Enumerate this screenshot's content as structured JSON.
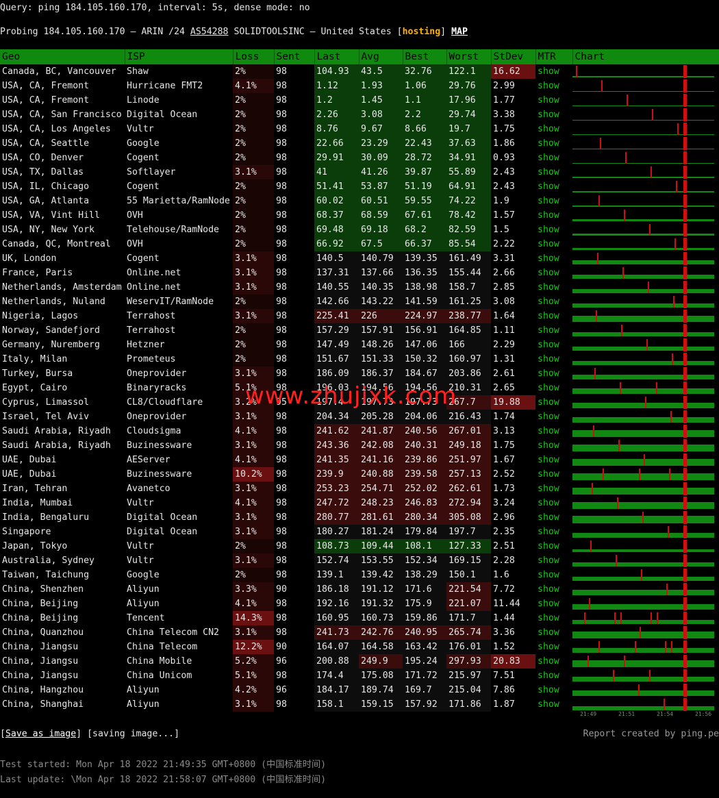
{
  "query": {
    "label": "Query:",
    "command": "ping 184.105.160.170",
    "interval": "interval: 5s",
    "dense": "dense mode: no"
  },
  "probe": {
    "prefix": "Probing 184.105.160.170 — ARIN /24",
    "asn": "AS54288",
    "org": "SOLIDTOOLSINC — United States",
    "tag": "hosting",
    "map": "MAP"
  },
  "colors": {
    "header_green": "#0f8a0f",
    "good": "#0b3d0b",
    "warn": "#2a1010",
    "bad": "#5a1010",
    "bar": "#118811",
    "spike": "#d01010"
  },
  "columns": [
    "Geo",
    "ISP",
    "Loss",
    "Sent",
    "Last",
    "Avg",
    "Best",
    "Worst",
    "StDev",
    "MTR",
    "Chart"
  ],
  "show_label": "show",
  "rows": [
    {
      "geo": "Canada, BC, Vancouver",
      "isp": "Shaw",
      "loss": "2%",
      "sent": "98",
      "last": "104.93",
      "avg": "43.5",
      "best": "32.76",
      "worst": "122.1",
      "stdev": "16.62"
    },
    {
      "geo": "USA, CA, Fremont",
      "isp": "Hurricane FMT2",
      "loss": "4.1%",
      "sent": "98",
      "last": "1.12",
      "avg": "1.93",
      "best": "1.06",
      "worst": "29.76",
      "stdev": "2.99"
    },
    {
      "geo": "USA, CA, Fremont",
      "isp": "Linode",
      "loss": "2%",
      "sent": "98",
      "last": "1.2",
      "avg": "1.45",
      "best": "1.1",
      "worst": "17.96",
      "stdev": "1.77"
    },
    {
      "geo": "USA, CA, San Francisco",
      "isp": "Digital Ocean",
      "loss": "2%",
      "sent": "98",
      "last": "2.26",
      "avg": "3.08",
      "best": "2.2",
      "worst": "29.74",
      "stdev": "3.38"
    },
    {
      "geo": "USA, CA, Los Angeles",
      "isp": "Vultr",
      "loss": "2%",
      "sent": "98",
      "last": "8.76",
      "avg": "9.67",
      "best": "8.66",
      "worst": "19.7",
      "stdev": "1.75"
    },
    {
      "geo": "USA, CA, Seattle",
      "isp": "Google",
      "loss": "2%",
      "sent": "98",
      "last": "22.66",
      "avg": "23.29",
      "best": "22.43",
      "worst": "37.63",
      "stdev": "1.86"
    },
    {
      "geo": "USA, CO, Denver",
      "isp": "Cogent",
      "loss": "2%",
      "sent": "98",
      "last": "29.91",
      "avg": "30.09",
      "best": "28.72",
      "worst": "34.91",
      "stdev": "0.93"
    },
    {
      "geo": "USA, TX, Dallas",
      "isp": "Softlayer",
      "loss": "3.1%",
      "sent": "98",
      "last": "41",
      "avg": "41.26",
      "best": "39.87",
      "worst": "55.89",
      "stdev": "2.43"
    },
    {
      "geo": "USA, IL, Chicago",
      "isp": "Cogent",
      "loss": "2%",
      "sent": "98",
      "last": "51.41",
      "avg": "53.87",
      "best": "51.19",
      "worst": "64.91",
      "stdev": "2.43"
    },
    {
      "geo": "USA, GA, Atlanta",
      "isp": "55 Marietta/RamNode",
      "loss": "2%",
      "sent": "98",
      "last": "60.02",
      "avg": "60.51",
      "best": "59.55",
      "worst": "74.22",
      "stdev": "1.9"
    },
    {
      "geo": "USA, VA, Vint Hill",
      "isp": "OVH",
      "loss": "2%",
      "sent": "98",
      "last": "68.37",
      "avg": "68.59",
      "best": "67.61",
      "worst": "78.42",
      "stdev": "1.57"
    },
    {
      "geo": "USA, NY, New York",
      "isp": "Telehouse/RamNode",
      "loss": "2%",
      "sent": "98",
      "last": "69.48",
      "avg": "69.18",
      "best": "68.2",
      "worst": "82.59",
      "stdev": "1.5"
    },
    {
      "geo": "Canada, QC, Montreal",
      "isp": "OVH",
      "loss": "2%",
      "sent": "98",
      "last": "66.92",
      "avg": "67.5",
      "best": "66.37",
      "worst": "85.54",
      "stdev": "2.22"
    },
    {
      "geo": "UK, London",
      "isp": "Cogent",
      "loss": "3.1%",
      "sent": "98",
      "last": "140.5",
      "avg": "140.79",
      "best": "139.35",
      "worst": "161.49",
      "stdev": "3.31"
    },
    {
      "geo": "France, Paris",
      "isp": "Online.net",
      "loss": "3.1%",
      "sent": "98",
      "last": "137.31",
      "avg": "137.66",
      "best": "136.35",
      "worst": "155.44",
      "stdev": "2.66"
    },
    {
      "geo": "Netherlands, Amsterdam",
      "isp": "Online.net",
      "loss": "3.1%",
      "sent": "98",
      "last": "140.55",
      "avg": "140.35",
      "best": "138.98",
      "worst": "158.7",
      "stdev": "2.85"
    },
    {
      "geo": "Netherlands, Nuland",
      "isp": "WeservIT/RamNode",
      "loss": "2%",
      "sent": "98",
      "last": "142.66",
      "avg": "143.22",
      "best": "141.59",
      "worst": "161.25",
      "stdev": "3.08"
    },
    {
      "geo": "Nigeria, Lagos",
      "isp": "Terrahost",
      "loss": "3.1%",
      "sent": "98",
      "last": "225.41",
      "avg": "226",
      "best": "224.97",
      "worst": "238.77",
      "stdev": "1.64"
    },
    {
      "geo": "Norway, Sandefjord",
      "isp": "Terrahost",
      "loss": "2%",
      "sent": "98",
      "last": "157.29",
      "avg": "157.91",
      "best": "156.91",
      "worst": "164.85",
      "stdev": "1.11"
    },
    {
      "geo": "Germany, Nuremberg",
      "isp": "Hetzner",
      "loss": "2%",
      "sent": "98",
      "last": "147.49",
      "avg": "148.26",
      "best": "147.06",
      "worst": "166",
      "stdev": "2.29"
    },
    {
      "geo": "Italy, Milan",
      "isp": "Prometeus",
      "loss": "2%",
      "sent": "98",
      "last": "151.67",
      "avg": "151.33",
      "best": "150.32",
      "worst": "160.97",
      "stdev": "1.31"
    },
    {
      "geo": "Turkey, Bursa",
      "isp": "Oneprovider",
      "loss": "3.1%",
      "sent": "98",
      "last": "186.09",
      "avg": "186.37",
      "best": "184.67",
      "worst": "203.86",
      "stdev": "2.61"
    },
    {
      "geo": "Egypt, Cairo",
      "isp": "Binaryracks",
      "loss": "5.1%",
      "sent": "98",
      "last": "196.03",
      "avg": "194.56",
      "best": "194.56",
      "worst": "210.31",
      "stdev": "2.65"
    },
    {
      "geo": "Cyprus, Limassol",
      "isp": "CL8/Cloudflare",
      "loss": "3.2%",
      "sent": "95",
      "last": "197.4",
      "avg": "197.73",
      "best": "197.73",
      "worst": "267.7",
      "stdev": "19.88"
    },
    {
      "geo": "Israel, Tel Aviv",
      "isp": "Oneprovider",
      "loss": "3.1%",
      "sent": "98",
      "last": "204.34",
      "avg": "205.28",
      "best": "204.06",
      "worst": "216.43",
      "stdev": "1.74"
    },
    {
      "geo": "Saudi Arabia, Riyadh",
      "isp": "Cloudsigma",
      "loss": "4.1%",
      "sent": "98",
      "last": "241.62",
      "avg": "241.87",
      "best": "240.56",
      "worst": "267.01",
      "stdev": "3.13"
    },
    {
      "geo": "Saudi Arabia, Riyadh",
      "isp": "Buzinessware",
      "loss": "3.1%",
      "sent": "98",
      "last": "243.36",
      "avg": "242.08",
      "best": "240.31",
      "worst": "249.18",
      "stdev": "1.75"
    },
    {
      "geo": "UAE, Dubai",
      "isp": "AEServer",
      "loss": "4.1%",
      "sent": "98",
      "last": "241.35",
      "avg": "241.16",
      "best": "239.86",
      "worst": "251.97",
      "stdev": "1.67"
    },
    {
      "geo": "UAE, Dubai",
      "isp": "Buzinessware",
      "loss": "10.2%",
      "sent": "98",
      "last": "239.9",
      "avg": "240.88",
      "best": "239.58",
      "worst": "257.13",
      "stdev": "2.52"
    },
    {
      "geo": "Iran, Tehran",
      "isp": "Avanetco",
      "loss": "3.1%",
      "sent": "98",
      "last": "253.23",
      "avg": "254.71",
      "best": "252.02",
      "worst": "262.61",
      "stdev": "1.73"
    },
    {
      "geo": "India, Mumbai",
      "isp": "Vultr",
      "loss": "4.1%",
      "sent": "98",
      "last": "247.72",
      "avg": "248.23",
      "best": "246.83",
      "worst": "272.94",
      "stdev": "3.24"
    },
    {
      "geo": "India, Bengaluru",
      "isp": "Digital Ocean",
      "loss": "3.1%",
      "sent": "98",
      "last": "280.77",
      "avg": "281.61",
      "best": "280.34",
      "worst": "305.08",
      "stdev": "2.96"
    },
    {
      "geo": "Singapore",
      "isp": "Digital Ocean",
      "loss": "3.1%",
      "sent": "98",
      "last": "180.27",
      "avg": "181.24",
      "best": "179.84",
      "worst": "197.7",
      "stdev": "2.35"
    },
    {
      "geo": "Japan, Tokyo",
      "isp": "Vultr",
      "loss": "2%",
      "sent": "98",
      "last": "108.73",
      "avg": "109.44",
      "best": "108.1",
      "worst": "127.33",
      "stdev": "2.51"
    },
    {
      "geo": "Australia, Sydney",
      "isp": "Vultr",
      "loss": "3.1%",
      "sent": "98",
      "last": "152.74",
      "avg": "153.55",
      "best": "152.34",
      "worst": "169.15",
      "stdev": "2.28"
    },
    {
      "geo": "Taiwan, Taichung",
      "isp": "Google",
      "loss": "2%",
      "sent": "98",
      "last": "139.1",
      "avg": "139.42",
      "best": "138.29",
      "worst": "150.1",
      "stdev": "1.6"
    },
    {
      "geo": "China, Shenzhen",
      "isp": "Aliyun",
      "loss": "3.3%",
      "sent": "90",
      "last": "186.18",
      "avg": "191.12",
      "best": "171.6",
      "worst": "221.54",
      "stdev": "7.72"
    },
    {
      "geo": "China, Beijing",
      "isp": "Aliyun",
      "loss": "4.1%",
      "sent": "98",
      "last": "192.16",
      "avg": "191.32",
      "best": "175.9",
      "worst": "221.07",
      "stdev": "11.44"
    },
    {
      "geo": "China, Beijing",
      "isp": "Tencent",
      "loss": "14.3%",
      "sent": "98",
      "last": "160.95",
      "avg": "160.73",
      "best": "159.86",
      "worst": "171.7",
      "stdev": "1.44"
    },
    {
      "geo": "China, Quanzhou",
      "isp": "China Telecom CN2",
      "loss": "3.1%",
      "sent": "98",
      "last": "241.73",
      "avg": "242.76",
      "best": "240.95",
      "worst": "265.74",
      "stdev": "3.36"
    },
    {
      "geo": "China, Jiangsu",
      "isp": "China Telecom",
      "loss": "12.2%",
      "sent": "90",
      "last": "164.07",
      "avg": "164.58",
      "best": "163.42",
      "worst": "176.01",
      "stdev": "1.52"
    },
    {
      "geo": "China, Jiangsu",
      "isp": "China Mobile",
      "loss": "5.2%",
      "sent": "96",
      "last": "200.88",
      "avg": "249.9",
      "best": "195.24",
      "worst": "297.93",
      "stdev": "20.83"
    },
    {
      "geo": "China, Jiangsu",
      "isp": "China Unicom",
      "loss": "5.1%",
      "sent": "98",
      "last": "174.4",
      "avg": "175.08",
      "best": "171.72",
      "worst": "215.97",
      "stdev": "7.51"
    },
    {
      "geo": "China, Hangzhou",
      "isp": "Aliyun",
      "loss": "4.2%",
      "sent": "96",
      "last": "184.17",
      "avg": "189.74",
      "best": "169.7",
      "worst": "215.04",
      "stdev": "7.86"
    },
    {
      "geo": "China, Shanghai",
      "isp": "Aliyun",
      "loss": "3.1%",
      "sent": "98",
      "last": "158.1",
      "avg": "159.15",
      "best": "157.92",
      "worst": "171.86",
      "stdev": "1.87"
    }
  ],
  "timeline": [
    "21:49",
    "21:51",
    "21:54",
    "21:56"
  ],
  "save": {
    "label": "Save as image",
    "status": "[saving image...]"
  },
  "report": "Report created by ping.pe",
  "test_started": "Test started: Mon Apr 18 2022 21:49:35 GMT+0800 (中国标准时间)",
  "last_update": "Last update: \\Mon Apr 18 2022 21:58:07 GMT+0800 (中国标准时间)",
  "watermark": "www.zhujixk.com"
}
